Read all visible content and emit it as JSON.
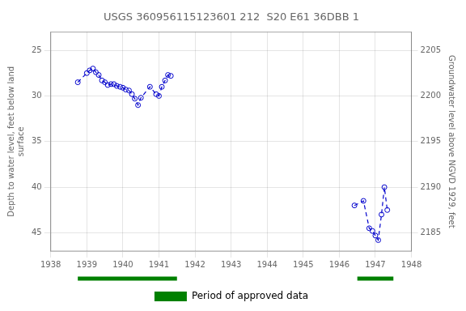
{
  "chart_data": {
    "type": "line",
    "title": "USGS 360956115123601 212  S20 E61 36DBB 1",
    "xlim": [
      1938,
      1948
    ],
    "xticks": [
      1938,
      1939,
      1940,
      1941,
      1942,
      1943,
      1944,
      1945,
      1946,
      1947,
      1948
    ],
    "ylim": [
      47,
      23
    ],
    "yticks": [
      25,
      30,
      35,
      40,
      45
    ],
    "y2lim": [
      2183,
      2207
    ],
    "y2ticks": [
      2205,
      2200,
      2195,
      2190,
      2185
    ],
    "ylabel": "Depth to water level, feet below land\nsurface",
    "y2label": "Groundwater level above NGVD 1929, feet",
    "grid": true,
    "legend": "bottom",
    "series": [
      {
        "color": "#0000cc",
        "line_style": "dashed",
        "marker": "circle",
        "x": [
          1938.75,
          1939.0,
          1939.08,
          1939.17,
          1939.25,
          1939.33,
          1939.42,
          1939.5,
          1939.58,
          1939.67,
          1939.75,
          1939.83,
          1939.92,
          1940.0,
          1940.08,
          1940.17,
          1940.25,
          1940.33,
          1940.42,
          1940.5,
          1940.75,
          1940.92,
          1941.0,
          1941.08,
          1941.17,
          1941.25,
          1941.33
        ],
        "values": [
          28.5,
          27.5,
          27.2,
          27.0,
          27.4,
          27.7,
          28.3,
          28.5,
          28.8,
          28.7,
          28.7,
          28.9,
          29.0,
          29.1,
          29.3,
          29.4,
          29.8,
          30.3,
          31.0,
          30.2,
          29.0,
          29.8,
          30.0,
          29.0,
          28.3,
          27.7,
          27.8
        ]
      },
      {
        "color": "#0000cc",
        "line_style": "dashed",
        "marker": "circle",
        "x": [
          1946.42,
          1946.67,
          1946.83,
          1946.92,
          1947.0,
          1947.08,
          1947.17,
          1947.25,
          1947.33
        ],
        "values": [
          42.0,
          41.5,
          44.5,
          44.8,
          45.3,
          45.8,
          43.0,
          40.0,
          42.5
        ]
      },
      {
        "name": "Period of approved data",
        "type": "period",
        "color": "#008000",
        "ranges": [
          [
            1938.75,
            1941.5
          ],
          [
            1946.5,
            1947.5
          ]
        ]
      }
    ]
  }
}
